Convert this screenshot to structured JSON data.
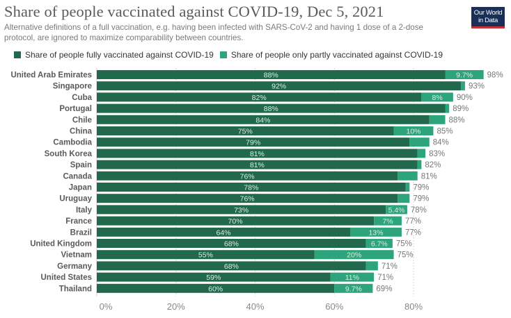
{
  "header": {
    "title": "Share of people vaccinated against COVID-19, Dec 5, 2021",
    "subtitle": "Alternative definitions of a full vaccination, e.g. having been infected with SARS-CoV-2 and having 1 dose of a 2-dose protocol, are ignored to maximize comparability between countries.",
    "logo_line1": "Our World",
    "logo_line2": "in Data"
  },
  "colors": {
    "fully": "#21684d",
    "partly": "#2ea47d",
    "logo_bg": "#1a2f56",
    "logo_accent": "#c8303a"
  },
  "chart_data": {
    "type": "bar",
    "orientation": "horizontal",
    "stacked": true,
    "title": "Share of people vaccinated against COVID-19, Dec 5, 2021",
    "xlabel": "",
    "ylabel": "",
    "xlim": [
      0,
      100
    ],
    "x_ticks": [
      "0%",
      "20%",
      "40%",
      "60%",
      "80%"
    ],
    "x_tick_values": [
      0,
      20,
      40,
      60,
      80
    ],
    "grid": "vertical dotted",
    "legend_position": "top-left",
    "categories": [
      "United Arab Emirates",
      "Singapore",
      "Cuba",
      "Portugal",
      "Chile",
      "China",
      "Cambodia",
      "South Korea",
      "Spain",
      "Canada",
      "Japan",
      "Uruguay",
      "Italy",
      "France",
      "Brazil",
      "United Kingdom",
      "Vietnam",
      "Germany",
      "United States",
      "Thailand"
    ],
    "series": [
      {
        "name": "Share of people fully vaccinated against COVID-19",
        "values": [
          88,
          92,
          82,
          88,
          84,
          75,
          79,
          81,
          81,
          76,
          78,
          76,
          73,
          70,
          64,
          68,
          55,
          68,
          59,
          60
        ],
        "labels": [
          "88%",
          "92%",
          "82%",
          "88%",
          "84%",
          "75%",
          "79%",
          "81%",
          "81%",
          "76%",
          "78%",
          "76%",
          "73%",
          "70%",
          "64%",
          "68%",
          "55%",
          "68%",
          "59%",
          "60%"
        ]
      },
      {
        "name": "Share of people only partly vaccinated against COVID-19",
        "values": [
          9.7,
          1,
          8,
          1,
          4,
          10,
          5,
          2,
          1,
          5,
          1,
          3,
          5.4,
          7,
          13,
          6.7,
          20,
          3,
          11,
          9.7
        ],
        "labels": [
          "9.7%",
          "",
          "8%",
          "",
          "",
          "10%",
          "",
          "",
          "",
          "",
          "",
          "",
          "5.4%",
          "7%",
          "13%",
          "6.7%",
          "20%",
          "",
          "11%",
          "9.7%"
        ]
      }
    ],
    "totals": [
      "98%",
      "93%",
      "90%",
      "89%",
      "88%",
      "85%",
      "84%",
      "83%",
      "82%",
      "81%",
      "79%",
      "79%",
      "78%",
      "77%",
      "77%",
      "75%",
      "75%",
      "71%",
      "71%",
      "69%"
    ]
  }
}
